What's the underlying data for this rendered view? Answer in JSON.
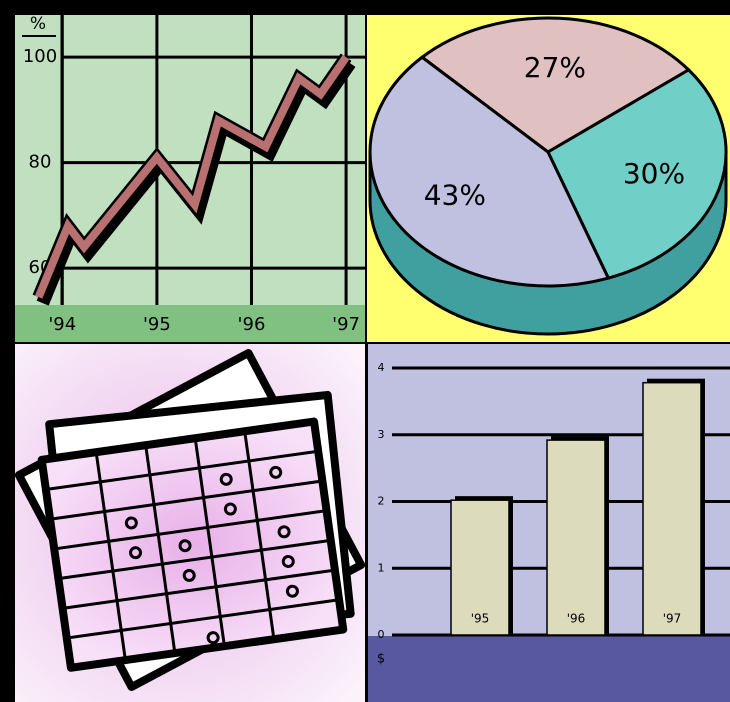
{
  "chart_data": [
    {
      "type": "line",
      "y_label": "%",
      "color": "#b87070",
      "x": [
        1993.75,
        1994.06,
        1994.23,
        1995.0,
        1995.4,
        1995.65,
        1996.15,
        1996.5,
        1996.73,
        1997.0
      ],
      "values": [
        54.5,
        68,
        64,
        81,
        72,
        88,
        83,
        96,
        93,
        100
      ],
      "xlim": [
        1993.5,
        1997.2
      ],
      "ylim": [
        53,
        108
      ],
      "xticks": [
        {
          "value": 1994,
          "label": "'94"
        },
        {
          "value": 1995,
          "label": "'95"
        },
        {
          "value": 1996,
          "label": "'96"
        },
        {
          "value": 1997,
          "label": "'97"
        }
      ],
      "yticks": [
        60,
        80,
        100
      ],
      "grid": true
    },
    {
      "type": "pie",
      "values": [
        27,
        30,
        43
      ],
      "value_labels": [
        "27%",
        "30%",
        "43%"
      ],
      "colors": [
        "#e0c0c0",
        "#70d0c8",
        "#c0c0e0"
      ]
    },
    {
      "type": "bar",
      "y_label": "$",
      "categories": [
        "'95",
        "'96",
        "'97"
      ],
      "values": [
        2.02,
        2.92,
        3.78
      ],
      "color": "#dcdcbc",
      "ylim": [
        0,
        4
      ],
      "yticks": [
        0,
        1,
        2,
        3,
        4
      ],
      "grid": true
    }
  ]
}
